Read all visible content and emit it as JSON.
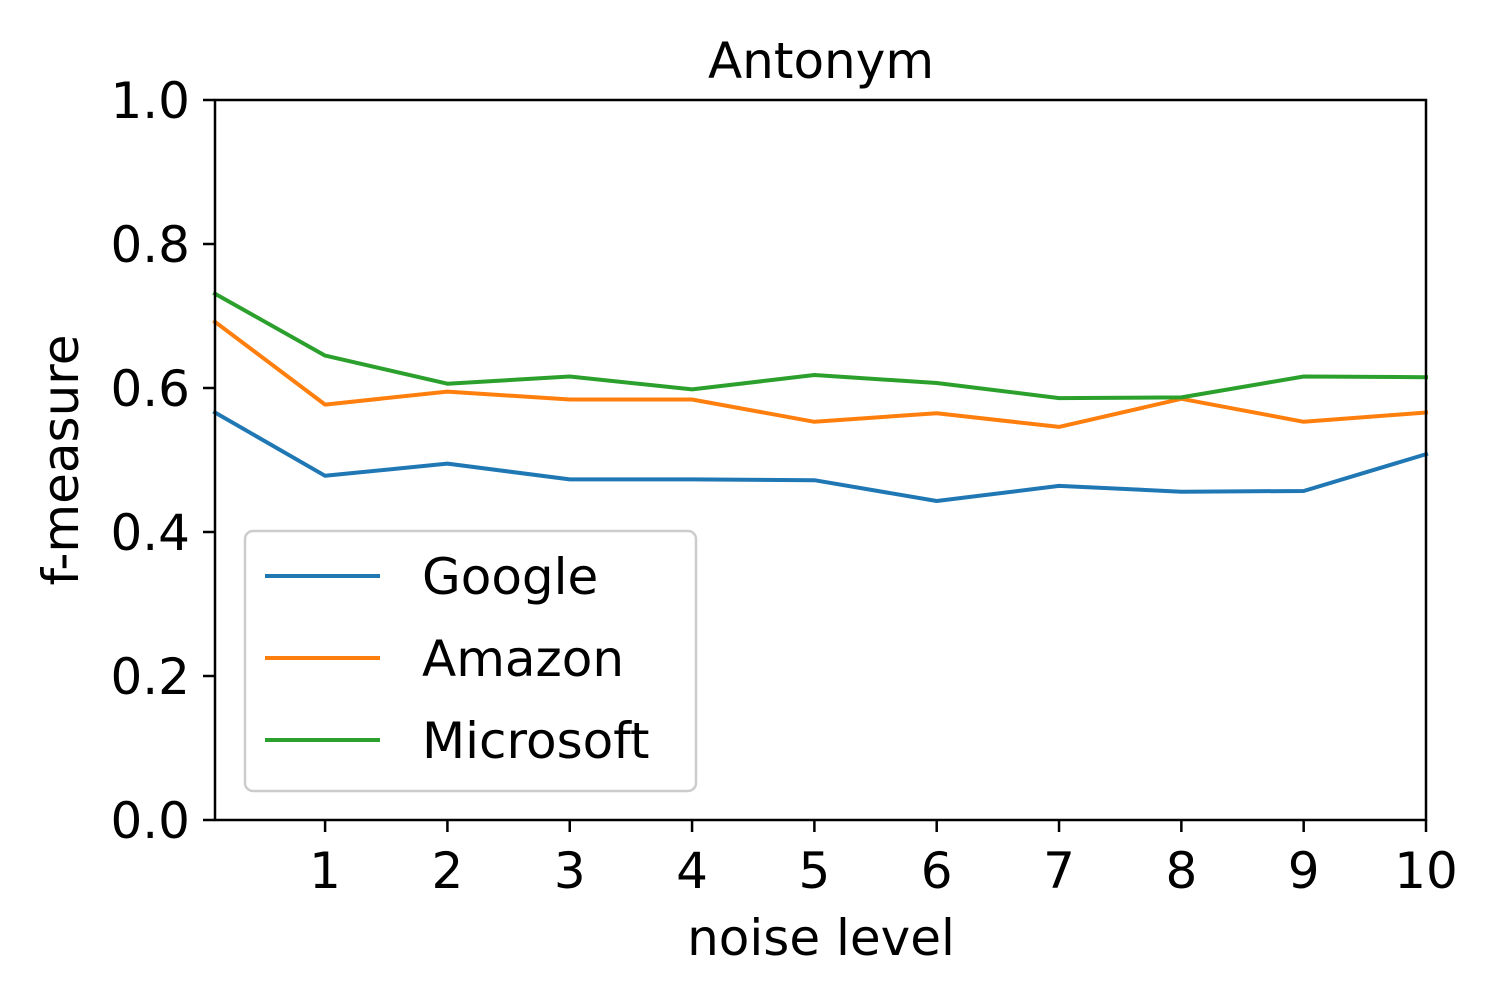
{
  "chart_data": {
    "type": "line",
    "title": "Antonym",
    "xlabel": "noise level",
    "ylabel": "f-measure",
    "xlim": [
      0.1,
      10
    ],
    "ylim": [
      0.0,
      1.0
    ],
    "x_ticks": [
      1,
      2,
      3,
      4,
      5,
      6,
      7,
      8,
      9,
      10
    ],
    "y_ticks": [
      0.0,
      0.2,
      0.4,
      0.6,
      0.8,
      1.0
    ],
    "x_tick_labels": [
      "1",
      "2",
      "3",
      "4",
      "5",
      "6",
      "7",
      "8",
      "9",
      "10"
    ],
    "y_tick_labels": [
      "0.0",
      "0.2",
      "0.4",
      "0.6",
      "0.8",
      "1.0"
    ],
    "x": [
      0.1,
      1,
      2,
      3,
      4,
      5,
      6,
      7,
      8,
      9,
      10
    ],
    "grid": false,
    "legend_position": "lower-left",
    "series": [
      {
        "name": "Google",
        "color": "#1f77b4",
        "values": [
          0.566,
          0.478,
          0.495,
          0.473,
          0.473,
          0.472,
          0.443,
          0.464,
          0.456,
          0.457,
          0.508
        ]
      },
      {
        "name": "Amazon",
        "color": "#ff7f0e",
        "values": [
          0.692,
          0.577,
          0.595,
          0.584,
          0.584,
          0.553,
          0.565,
          0.546,
          0.585,
          0.553,
          0.566
        ]
      },
      {
        "name": "Microsoft",
        "color": "#2ca02c",
        "values": [
          0.731,
          0.645,
          0.606,
          0.616,
          0.598,
          0.618,
          0.607,
          0.586,
          0.587,
          0.616,
          0.615
        ]
      }
    ]
  }
}
